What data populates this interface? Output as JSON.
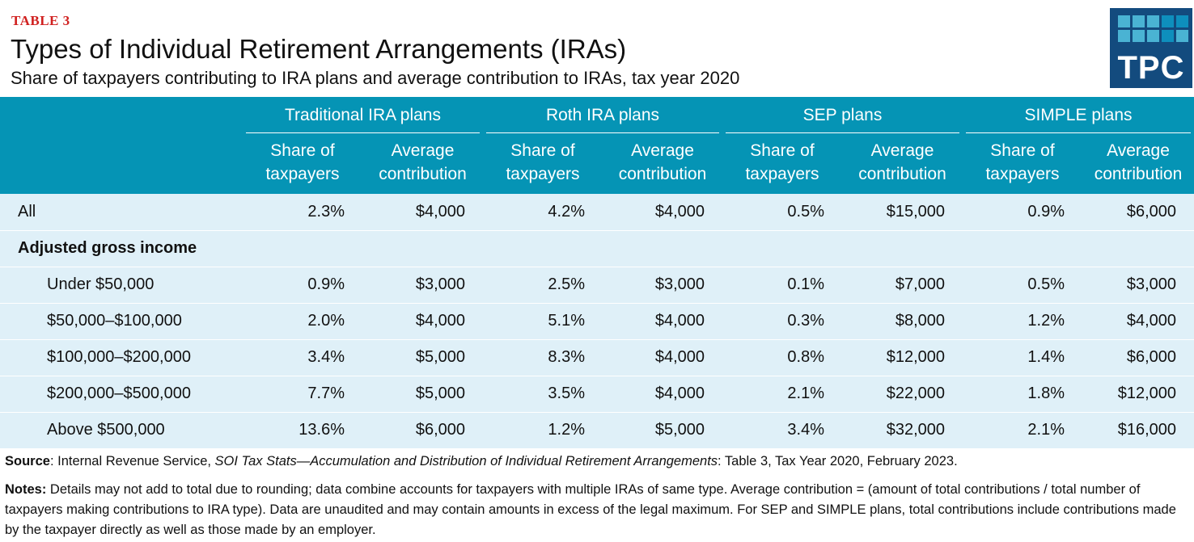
{
  "tag": "TABLE 3",
  "title": "Types of Individual Retirement Arrangements (IRAs)",
  "subtitle": "Share of taxpayers contributing to IRA plans and average contribution to IRAs, tax year 2020",
  "logo": {
    "text": "TPC",
    "colors": {
      "bg": "#134b7e",
      "light": "#4ab3d3",
      "dark": "#0e8fbd"
    }
  },
  "colors": {
    "header": "#0594b5",
    "row": "#dff0f8",
    "tag": "#d0201f"
  },
  "groups": [
    "Traditional IRA plans",
    "Roth IRA plans",
    "SEP plans",
    "SIMPLE plans"
  ],
  "subheaders": {
    "share": [
      "Share of",
      "taxpayers"
    ],
    "avg": [
      "Average",
      "contribution"
    ]
  },
  "section_label": "Adjusted gross income",
  "rows": [
    {
      "label": "All",
      "values": [
        "2.3%",
        "$4,000",
        "4.2%",
        "$4,000",
        "0.5%",
        "$15,000",
        "0.9%",
        "$6,000"
      ]
    },
    {
      "label": "Under $50,000",
      "values": [
        "0.9%",
        "$3,000",
        "2.5%",
        "$3,000",
        "0.1%",
        "$7,000",
        "0.5%",
        "$3,000"
      ]
    },
    {
      "label": "$50,000–$100,000",
      "values": [
        "2.0%",
        "$4,000",
        "5.1%",
        "$4,000",
        "0.3%",
        "$8,000",
        "1.2%",
        "$4,000"
      ]
    },
    {
      "label": "$100,000–$200,000",
      "values": [
        "3.4%",
        "$5,000",
        "8.3%",
        "$4,000",
        "0.8%",
        "$12,000",
        "1.4%",
        "$6,000"
      ]
    },
    {
      "label": "$200,000–$500,000",
      "values": [
        "7.7%",
        "$5,000",
        "3.5%",
        "$4,000",
        "2.1%",
        "$22,000",
        "1.8%",
        "$12,000"
      ]
    },
    {
      "label": "Above $500,000",
      "values": [
        "13.6%",
        "$6,000",
        "1.2%",
        "$5,000",
        "3.4%",
        "$32,000",
        "2.1%",
        "$16,000"
      ]
    }
  ],
  "source": {
    "label": "Source",
    "pre": ": Internal Revenue Service, ",
    "italic": "SOI Tax Stats—Accumulation and Distribution of Individual Retirement Arrangements",
    "post": ": Table 3, Tax Year 2020, February 2023."
  },
  "notes": {
    "label": "Notes:",
    "text": " Details may not add to total due to rounding; data combine accounts for taxpayers with multiple IRAs of same type. Average contribution = (amount of total contributions / total number of taxpayers making contributions to IRA type). Data are unaudited and may contain amounts in excess of the legal maximum. For SEP and SIMPLE plans, total contributions include contributions made by the taxpayer directly as well as those made by an employer."
  }
}
